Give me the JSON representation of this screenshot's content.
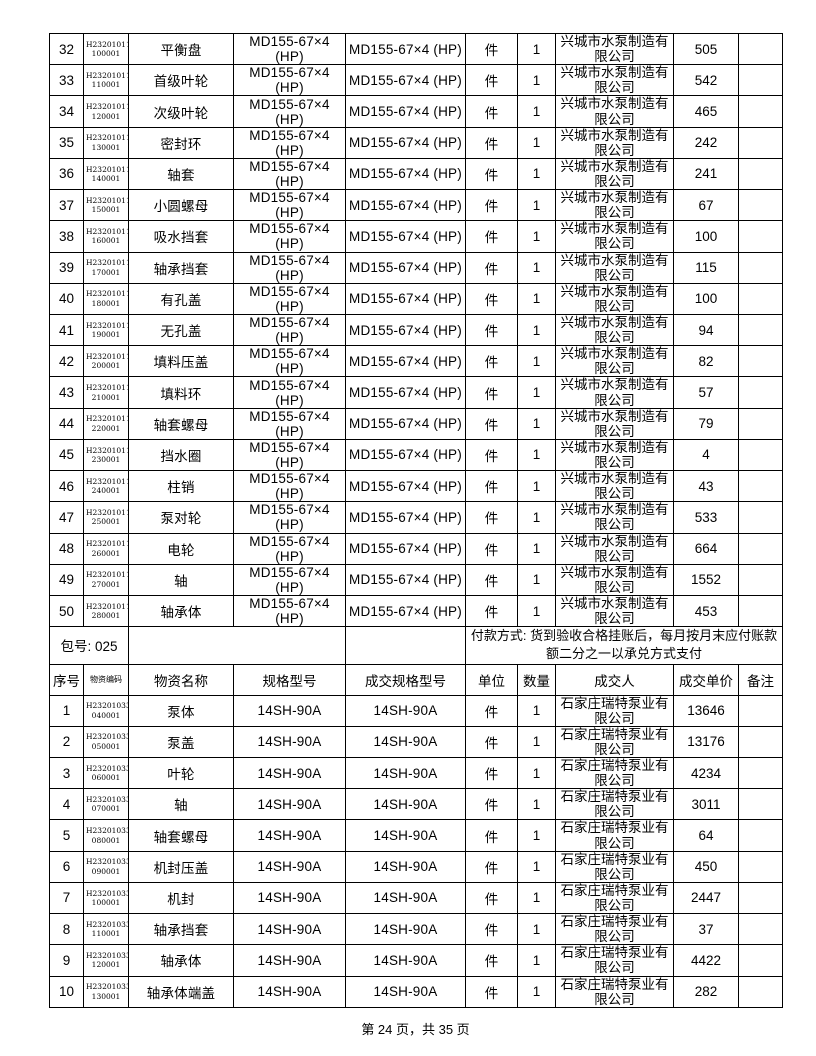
{
  "page_footer": "第 24 页，共 35 页",
  "package": {
    "label": "包号: 025",
    "payment": "付款方式: 货到验收合格挂账后，每月按月末应付账款额二分之一以承兑方式支付"
  },
  "header": {
    "no": "序号",
    "code": "物资编码",
    "name": "物资名称",
    "spec": "规格型号",
    "deal_spec": "成交规格型号",
    "unit": "单位",
    "qty": "数量",
    "dealer": "成交人",
    "price": "成交单价",
    "remark": "备注"
  },
  "tables": [
    {
      "name": "md155-parts",
      "defaults": {
        "code1": "H232010110",
        "spec": "MD155-67×4 (HP)",
        "deal_spec": "MD155-67×4 (HP)",
        "unit": "件",
        "qty": "1",
        "supplier": "兴城市水泵制造有限公司",
        "remark": ""
      },
      "rows": [
        {
          "no": "32",
          "code2": "100001",
          "name": "平衡盘",
          "price": "505"
        },
        {
          "no": "33",
          "code2": "110001",
          "name": "首级叶轮",
          "price": "542"
        },
        {
          "no": "34",
          "code2": "120001",
          "name": "次级叶轮",
          "price": "465"
        },
        {
          "no": "35",
          "code2": "130001",
          "name": "密封环",
          "price": "242"
        },
        {
          "no": "36",
          "code2": "140001",
          "name": "轴套",
          "price": "241"
        },
        {
          "no": "37",
          "code2": "150001",
          "name": "小圆螺母",
          "price": "67"
        },
        {
          "no": "38",
          "code2": "160001",
          "name": "吸水挡套",
          "price": "100"
        },
        {
          "no": "39",
          "code2": "170001",
          "name": "轴承挡套",
          "price": "115"
        },
        {
          "no": "40",
          "code2": "180001",
          "name": "有孔盖",
          "price": "100"
        },
        {
          "no": "41",
          "code2": "190001",
          "name": "无孔盖",
          "price": "94"
        },
        {
          "no": "42",
          "code2": "200001",
          "name": "填料压盖",
          "price": "82"
        },
        {
          "no": "43",
          "code2": "210001",
          "name": "填料环",
          "price": "57"
        },
        {
          "no": "44",
          "code2": "220001",
          "name": "轴套螺母",
          "price": "79"
        },
        {
          "no": "45",
          "code2": "230001",
          "name": "挡水圈",
          "price": "4"
        },
        {
          "no": "46",
          "code2": "240001",
          "name": "柱销",
          "price": "43"
        },
        {
          "no": "47",
          "code2": "250001",
          "name": "泵对轮",
          "price": "533"
        },
        {
          "no": "48",
          "code2": "260001",
          "name": "电轮",
          "price": "664"
        },
        {
          "no": "49",
          "code2": "270001",
          "name": "轴",
          "price": "1552"
        },
        {
          "no": "50",
          "code2": "280001",
          "name": "轴承体",
          "price": "453"
        }
      ]
    },
    {
      "name": "14sh-parts",
      "defaults": {
        "code1": "H232010330",
        "spec": "14SH-90A",
        "deal_spec": "14SH-90A",
        "unit": "件",
        "qty": "1",
        "supplier": "石家庄瑞特泵业有限公司",
        "remark": ""
      },
      "rows": [
        {
          "no": "1",
          "code2": "040001",
          "name": "泵体",
          "price": "13646"
        },
        {
          "no": "2",
          "code2": "050001",
          "name": "泵盖",
          "price": "13176"
        },
        {
          "no": "3",
          "code2": "060001",
          "name": "叶轮",
          "price": "4234"
        },
        {
          "no": "4",
          "code2": "070001",
          "name": "轴",
          "price": "3011"
        },
        {
          "no": "5",
          "code2": "080001",
          "name": "轴套螺母",
          "price": "64"
        },
        {
          "no": "6",
          "code2": "090001",
          "name": "机封压盖",
          "price": "450"
        },
        {
          "no": "7",
          "code2": "100001",
          "name": "机封",
          "price": "2447"
        },
        {
          "no": "8",
          "code2": "110001",
          "name": "轴承挡套",
          "price": "37"
        },
        {
          "no": "9",
          "code2": "120001",
          "name": "轴承体",
          "price": "4422"
        },
        {
          "no": "10",
          "code2": "130001",
          "name": "轴承体端盖",
          "price": "282"
        }
      ]
    }
  ]
}
